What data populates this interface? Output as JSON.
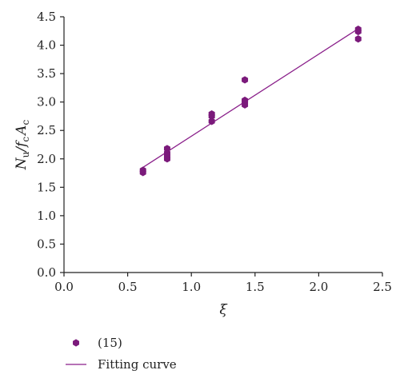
{
  "chart_data": {
    "type": "scatter",
    "title": "",
    "xlabel": "ξ",
    "ylabel": {
      "main": "N",
      "sub1": "u",
      "mid": "/f",
      "sub2": "c",
      "main2": "A",
      "sub3": "c"
    },
    "xlim": [
      0.0,
      2.5
    ],
    "ylim": [
      0.0,
      4.5
    ],
    "x_ticks": [
      "0.0",
      "0.5",
      "1.0",
      "1.5",
      "2.0",
      "2.5"
    ],
    "y_ticks": [
      "0.0",
      "0.5",
      "1.0",
      "1.5",
      "2.0",
      "2.5",
      "3.0",
      "3.5",
      "4.0",
      "4.5"
    ],
    "grid": false,
    "legend_position": "bottom-left",
    "series": [
      {
        "name": "(15)",
        "kind": "scatter",
        "marker": "hexagon",
        "color": "#7b1a7b",
        "points": [
          [
            0.62,
            1.76
          ],
          [
            0.62,
            1.8
          ],
          [
            0.81,
            2.0
          ],
          [
            0.81,
            2.04
          ],
          [
            0.81,
            2.1
          ],
          [
            0.81,
            2.18
          ],
          [
            1.16,
            2.66
          ],
          [
            1.16,
            2.75
          ],
          [
            1.16,
            2.79
          ],
          [
            1.42,
            2.95
          ],
          [
            1.42,
            3.01
          ],
          [
            1.42,
            3.03
          ],
          [
            1.42,
            3.39
          ],
          [
            2.31,
            4.11
          ],
          [
            2.31,
            4.24
          ],
          [
            2.31,
            4.28
          ]
        ]
      },
      {
        "name": "Fitting curve",
        "kind": "line",
        "color": "#8a1f8a",
        "points": [
          [
            0.62,
            1.85
          ],
          [
            2.31,
            4.29
          ]
        ]
      }
    ]
  }
}
